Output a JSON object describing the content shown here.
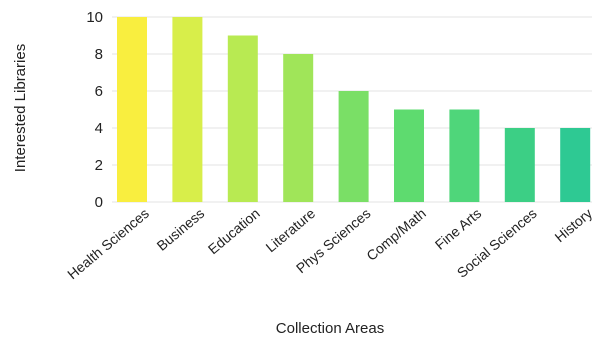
{
  "chart_data": {
    "type": "bar",
    "title": "",
    "xlabel": "Collection Areas",
    "ylabel": "Interested Libraries",
    "categories": [
      "Health Sciences",
      "Business",
      "Education",
      "Literature",
      "Phys Sciences",
      "Comp/Math",
      "Fine Arts",
      "Social Sciences",
      "History"
    ],
    "values": [
      10,
      10,
      9,
      8,
      6,
      5,
      5,
      4,
      4
    ],
    "ylim": [
      0,
      10
    ],
    "yticks": [
      "0",
      "2",
      "4",
      "6",
      "8",
      "10"
    ],
    "grid": true,
    "legend": "none",
    "colors": [
      "#f9ee3f",
      "#d8ee4a",
      "#b8ea52",
      "#a0e559",
      "#7adf66",
      "#5edb6f",
      "#4fd67a",
      "#3ccf85",
      "#2ec993"
    ]
  }
}
